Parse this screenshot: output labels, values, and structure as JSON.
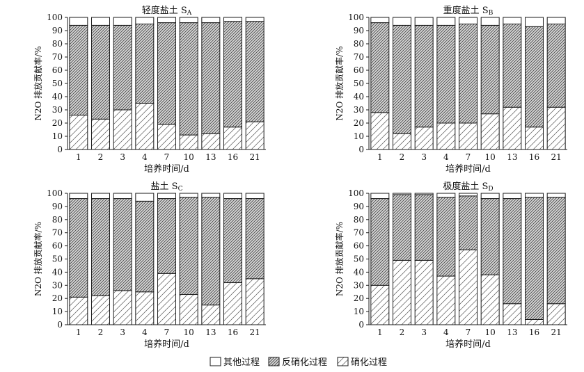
{
  "colors": {
    "ink": "#1a1a1a",
    "bar_fill": "#ffffff",
    "hatch_bg": "#d8d8d8"
  },
  "legend": {
    "items": [
      {
        "label": "其他过程",
        "pattern": "blank"
      },
      {
        "label": "反硝化过程",
        "pattern": "dense-hatch"
      },
      {
        "label": "硝化过程",
        "pattern": "sparse-hatch"
      }
    ]
  },
  "chart_data": [
    {
      "type": "bar",
      "stacked": true,
      "title": "轻度盐土 SA",
      "title_main": "轻度盐土 S",
      "title_sub": "A",
      "xlabel": "培养时间/d",
      "ylabel": "N2O 排放贡献率/%",
      "ylim": [
        0,
        100
      ],
      "yticks": [
        0,
        10,
        20,
        30,
        40,
        50,
        60,
        70,
        80,
        90,
        100
      ],
      "categories": [
        "1",
        "2",
        "3",
        "4",
        "7",
        "10",
        "13",
        "16",
        "21"
      ],
      "series": [
        {
          "name": "硝化过程",
          "values": [
            26,
            23,
            30,
            35,
            19,
            11,
            12,
            17,
            21
          ]
        },
        {
          "name": "反硝化过程",
          "values": [
            68,
            71,
            64,
            60,
            77,
            85,
            84,
            80,
            76
          ]
        },
        {
          "name": "其他过程",
          "values": [
            6,
            6,
            6,
            5,
            4,
            4,
            4,
            3,
            3
          ]
        }
      ]
    },
    {
      "type": "bar",
      "stacked": true,
      "title": "重度盐土 SB",
      "title_main": "重度盐土 S",
      "title_sub": "B",
      "xlabel": "培养时间/d",
      "ylabel": "N2O 排放贡献率/%",
      "ylim": [
        0,
        100
      ],
      "yticks": [
        0,
        10,
        20,
        30,
        40,
        50,
        60,
        70,
        80,
        90,
        100
      ],
      "categories": [
        "1",
        "2",
        "3",
        "4",
        "7",
        "10",
        "13",
        "16",
        "21"
      ],
      "series": [
        {
          "name": "硝化过程",
          "values": [
            28,
            12,
            17,
            20,
            20,
            27,
            32,
            17,
            32
          ]
        },
        {
          "name": "反硝化过程",
          "values": [
            68,
            82,
            77,
            74,
            75,
            67,
            63,
            76,
            63
          ]
        },
        {
          "name": "其他过程",
          "values": [
            4,
            6,
            6,
            6,
            5,
            6,
            5,
            7,
            5
          ]
        }
      ]
    },
    {
      "type": "bar",
      "stacked": true,
      "title": "盐土 SC",
      "title_main": "盐土 S",
      "title_sub": "C",
      "xlabel": "培养时间/d",
      "ylabel": "N2O 排放贡献率/%",
      "ylim": [
        0,
        100
      ],
      "yticks": [
        0,
        10,
        20,
        30,
        40,
        50,
        60,
        70,
        80,
        90,
        100
      ],
      "categories": [
        "1",
        "2",
        "3",
        "4",
        "7",
        "10",
        "13",
        "16",
        "21"
      ],
      "series": [
        {
          "name": "硝化过程",
          "values": [
            21,
            22,
            26,
            25,
            39,
            23,
            15,
            32,
            35
          ]
        },
        {
          "name": "反硝化过程",
          "values": [
            75,
            74,
            70,
            69,
            57,
            74,
            82,
            64,
            61
          ]
        },
        {
          "name": "其他过程",
          "values": [
            4,
            4,
            4,
            6,
            4,
            3,
            3,
            4,
            4
          ]
        }
      ]
    },
    {
      "type": "bar",
      "stacked": true,
      "title": "极度盐土 SD",
      "title_main": "极度盐土 S",
      "title_sub": "D",
      "xlabel": "培养时间/d",
      "ylabel": "N2O 排放贡献率/%",
      "ylim": [
        0,
        100
      ],
      "yticks": [
        0,
        10,
        20,
        30,
        40,
        50,
        60,
        70,
        80,
        90,
        100
      ],
      "categories": [
        "1",
        "2",
        "3",
        "4",
        "7",
        "10",
        "13",
        "16",
        "21"
      ],
      "series": [
        {
          "name": "硝化过程",
          "values": [
            30,
            49,
            49,
            37,
            57,
            38,
            16,
            4,
            16
          ]
        },
        {
          "name": "反硝化过程",
          "values": [
            66,
            50,
            50,
            60,
            41,
            58,
            80,
            93,
            81
          ]
        },
        {
          "name": "其他过程",
          "values": [
            4,
            1,
            1,
            3,
            2,
            4,
            4,
            3,
            3
          ]
        }
      ]
    }
  ]
}
